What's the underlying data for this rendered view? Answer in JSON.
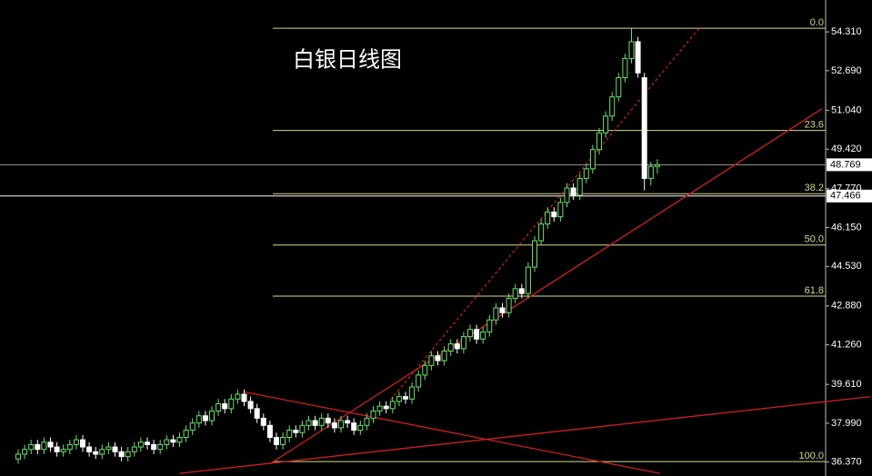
{
  "chart_data": {
    "type": "candlestick",
    "title": "白银日线图",
    "up_color": "#6ee06e",
    "down_color": "#ffffff",
    "open": [
      36.5,
      36.7,
      36.9,
      37.1,
      36.9,
      37.2,
      37.0,
      36.8,
      36.9,
      37.1,
      37.3,
      37.0,
      36.8,
      36.7,
      36.9,
      37.0,
      36.8,
      36.6,
      36.8,
      37.0,
      37.2,
      37.1,
      36.9,
      37.1,
      37.3,
      37.2,
      37.4,
      37.7,
      38.0,
      38.3,
      38.1,
      38.5,
      38.8,
      38.6,
      39.0,
      39.2,
      38.9,
      38.6,
      38.2,
      37.9,
      37.4,
      37.1,
      37.4,
      37.7,
      37.6,
      37.9,
      38.1,
      37.9,
      38.2,
      38.0,
      37.8,
      38.1,
      38.0,
      37.7,
      37.9,
      38.2,
      38.5,
      38.7,
      38.6,
      38.9,
      39.1,
      39.0,
      39.5,
      40.0,
      40.4,
      40.8,
      40.6,
      41.0,
      41.3,
      41.1,
      41.6,
      41.9,
      41.5,
      41.8,
      42.3,
      42.8,
      42.6,
      43.2,
      43.6,
      43.4,
      44.5,
      45.6,
      46.3,
      46.8,
      46.6,
      47.2,
      47.8,
      47.5,
      48.2,
      48.6,
      49.4,
      50.1,
      50.8,
      51.6,
      52.4,
      53.2,
      53.9,
      52.4,
      48.2,
      48.7
    ],
    "high": [
      36.9,
      37.1,
      37.3,
      37.3,
      37.4,
      37.4,
      37.2,
      37.1,
      37.3,
      37.5,
      37.5,
      37.2,
      37.0,
      37.1,
      37.2,
      37.2,
      37.0,
      37.0,
      37.2,
      37.4,
      37.4,
      37.3,
      37.3,
      37.5,
      37.5,
      37.6,
      37.9,
      38.2,
      38.5,
      38.5,
      38.7,
      39.0,
      39.0,
      39.2,
      39.4,
      39.4,
      39.1,
      38.8,
      38.4,
      38.1,
      37.6,
      37.6,
      37.9,
      37.9,
      38.1,
      38.3,
      38.3,
      38.4,
      38.4,
      38.2,
      38.3,
      38.3,
      38.2,
      38.1,
      38.4,
      38.7,
      38.9,
      38.9,
      39.1,
      39.3,
      39.3,
      39.7,
      40.2,
      40.6,
      41.0,
      41.0,
      41.2,
      41.5,
      41.5,
      41.8,
      42.1,
      42.1,
      42.0,
      42.5,
      43.0,
      43.0,
      43.4,
      43.8,
      43.8,
      44.7,
      45.8,
      46.5,
      47.0,
      47.0,
      47.4,
      48.0,
      48.0,
      48.4,
      48.8,
      49.6,
      50.3,
      51.0,
      51.8,
      52.6,
      53.4,
      54.46,
      54.1,
      52.6,
      48.9,
      49.0
    ],
    "low": [
      36.3,
      36.5,
      36.7,
      36.7,
      36.7,
      36.8,
      36.6,
      36.6,
      36.7,
      36.9,
      36.8,
      36.6,
      36.5,
      36.5,
      36.7,
      36.6,
      36.4,
      36.4,
      36.6,
      36.8,
      36.9,
      36.7,
      36.7,
      36.9,
      37.0,
      37.0,
      37.2,
      37.5,
      37.8,
      37.9,
      37.9,
      38.3,
      38.4,
      38.4,
      38.8,
      38.7,
      38.4,
      38.0,
      37.7,
      37.2,
      36.9,
      36.9,
      37.2,
      37.4,
      37.4,
      37.7,
      37.7,
      37.7,
      37.8,
      37.6,
      37.6,
      37.8,
      37.5,
      37.5,
      37.7,
      38.0,
      38.3,
      38.4,
      38.4,
      38.7,
      38.8,
      38.8,
      39.3,
      39.8,
      40.2,
      40.4,
      40.4,
      40.8,
      40.9,
      40.9,
      41.4,
      41.3,
      41.3,
      41.6,
      42.1,
      42.4,
      42.4,
      43.0,
      43.2,
      43.2,
      44.3,
      45.4,
      46.1,
      46.4,
      46.4,
      47.0,
      47.3,
      47.3,
      48.0,
      48.4,
      49.2,
      49.9,
      50.6,
      51.4,
      52.2,
      53.0,
      52.4,
      47.7,
      47.9,
      48.4
    ],
    "close": [
      36.7,
      36.9,
      37.1,
      36.9,
      37.2,
      37.0,
      36.8,
      36.9,
      37.1,
      37.3,
      37.0,
      36.8,
      36.7,
      36.9,
      37.0,
      36.8,
      36.6,
      36.8,
      37.0,
      37.2,
      37.1,
      36.9,
      37.1,
      37.3,
      37.2,
      37.4,
      37.7,
      38.0,
      38.3,
      38.1,
      38.5,
      38.8,
      38.6,
      39.0,
      39.2,
      38.9,
      38.6,
      38.2,
      37.9,
      37.4,
      37.1,
      37.4,
      37.7,
      37.6,
      37.9,
      38.1,
      37.9,
      38.2,
      38.0,
      37.8,
      38.1,
      38.0,
      37.7,
      37.9,
      38.2,
      38.5,
      38.7,
      38.6,
      38.9,
      39.1,
      39.0,
      39.5,
      40.0,
      40.4,
      40.8,
      40.6,
      41.0,
      41.3,
      41.1,
      41.6,
      41.9,
      41.5,
      41.8,
      42.3,
      42.8,
      42.6,
      43.2,
      43.6,
      43.4,
      44.5,
      45.6,
      46.3,
      46.8,
      46.6,
      47.2,
      47.8,
      47.5,
      48.2,
      48.6,
      49.4,
      50.1,
      50.8,
      51.6,
      52.4,
      53.2,
      53.9,
      52.6,
      48.2,
      48.7,
      48.77
    ],
    "ylim": [
      35.79,
      55.64
    ],
    "yticks": [
      {
        "value": 54.31,
        "label": "54.310"
      },
      {
        "value": 52.69,
        "label": "52.690"
      },
      {
        "value": 51.04,
        "label": "51.040"
      },
      {
        "value": 49.42,
        "label": "49.420"
      },
      {
        "value": 47.77,
        "label": "47.770"
      },
      {
        "value": 46.15,
        "label": "46.150"
      },
      {
        "value": 44.53,
        "label": "44.530"
      },
      {
        "value": 42.88,
        "label": "42.880"
      },
      {
        "value": 41.26,
        "label": "41.260"
      },
      {
        "value": 39.61,
        "label": "39.610"
      },
      {
        "value": 37.99,
        "label": "37.990"
      },
      {
        "value": 36.37,
        "label": "36.370"
      }
    ],
    "fib_color": "#d8d890",
    "fib_levels": [
      {
        "ratio": "0.0",
        "price": 54.46
      },
      {
        "ratio": "23.6",
        "price": 50.2
      },
      {
        "ratio": "38.2",
        "price": 47.56
      },
      {
        "ratio": "50.0",
        "price": 45.42
      },
      {
        "ratio": "61.8",
        "price": 43.29
      },
      {
        "ratio": "100.0",
        "price": 36.39
      }
    ],
    "price_lines": [
      {
        "value": 48.769,
        "color": "#9a9a9a"
      },
      {
        "value": 47.466,
        "color": "#ffffff"
      }
    ],
    "trend_color": "#cc2020",
    "trendlines": [
      {
        "dashed": false,
        "index": [
          35,
          99.4
        ],
        "price": [
          39.3,
          35.9
        ]
      },
      {
        "dashed": false,
        "index": [
          25,
          132
        ],
        "price": [
          35.9,
          39.1
        ]
      },
      {
        "dashed": false,
        "index": [
          39,
          124.5
        ],
        "price": [
          36.3,
          51.1
        ]
      },
      {
        "dashed": true,
        "index": [
          57.7,
          105.6
        ],
        "price": [
          38.97,
          54.5
        ]
      }
    ]
  }
}
